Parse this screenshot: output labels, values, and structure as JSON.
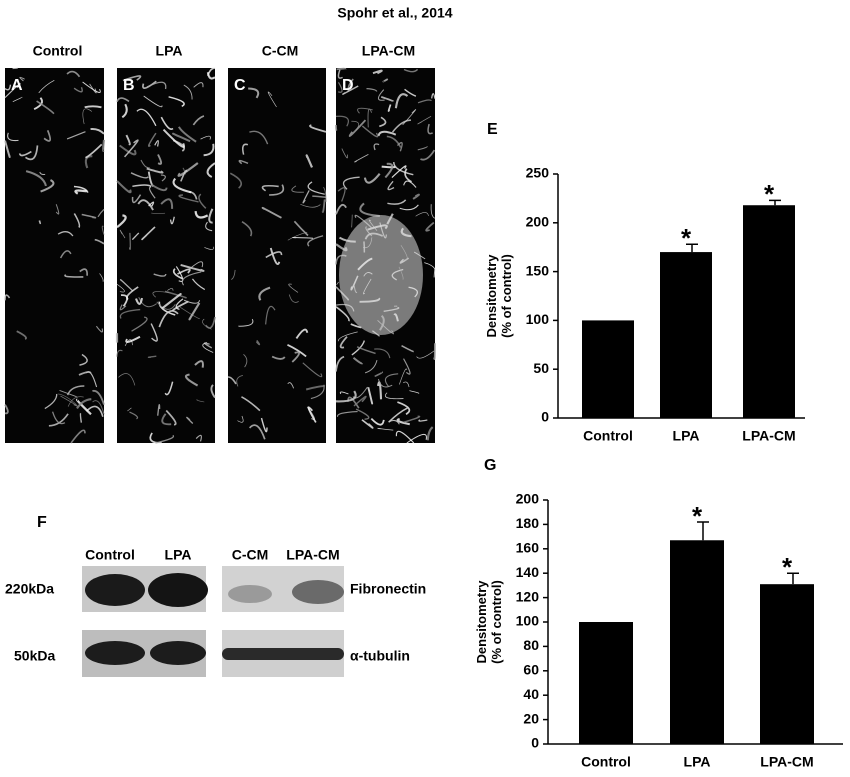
{
  "title": "Spohr et al., 2014",
  "images": [
    {
      "letter": "A",
      "label": "Control"
    },
    {
      "letter": "B",
      "label": "LPA"
    },
    {
      "letter": "C",
      "label": "C-CM"
    },
    {
      "letter": "D",
      "label": "LPA-CM"
    }
  ],
  "blot": {
    "letter": "F",
    "lanes": [
      "Control",
      "LPA",
      "C-CM",
      "LPA-CM"
    ],
    "rows": [
      {
        "size": "220kDa",
        "protein": "Fibronectin"
      },
      {
        "size": "50kDa",
        "protein": "α-tubulin"
      }
    ]
  },
  "chart_data": [
    {
      "type": "bar",
      "panel": "E",
      "ylabel": [
        "Densitometry",
        "(% of control)"
      ],
      "categories": [
        "Control",
        "LPA",
        "LPA-CM"
      ],
      "values": [
        100,
        170,
        218
      ],
      "errors": [
        null,
        8,
        5
      ],
      "significance": [
        null,
        "*",
        "*"
      ],
      "color": "#000000",
      "ylim": [
        0,
        250
      ],
      "yticks": [
        0,
        50,
        100,
        150,
        200,
        250
      ],
      "grid": false
    },
    {
      "type": "bar",
      "panel": "G",
      "ylabel": [
        "Densitometry",
        "(% of control)"
      ],
      "categories": [
        "Control",
        "LPA",
        "LPA-CM"
      ],
      "values": [
        100,
        167,
        131
      ],
      "errors": [
        null,
        15,
        9
      ],
      "significance": [
        null,
        "*",
        "*"
      ],
      "color": "#000000",
      "ylim": [
        0,
        200
      ],
      "yticks": [
        0,
        20,
        40,
        60,
        80,
        100,
        120,
        140,
        160,
        180,
        200
      ],
      "grid": false
    }
  ]
}
